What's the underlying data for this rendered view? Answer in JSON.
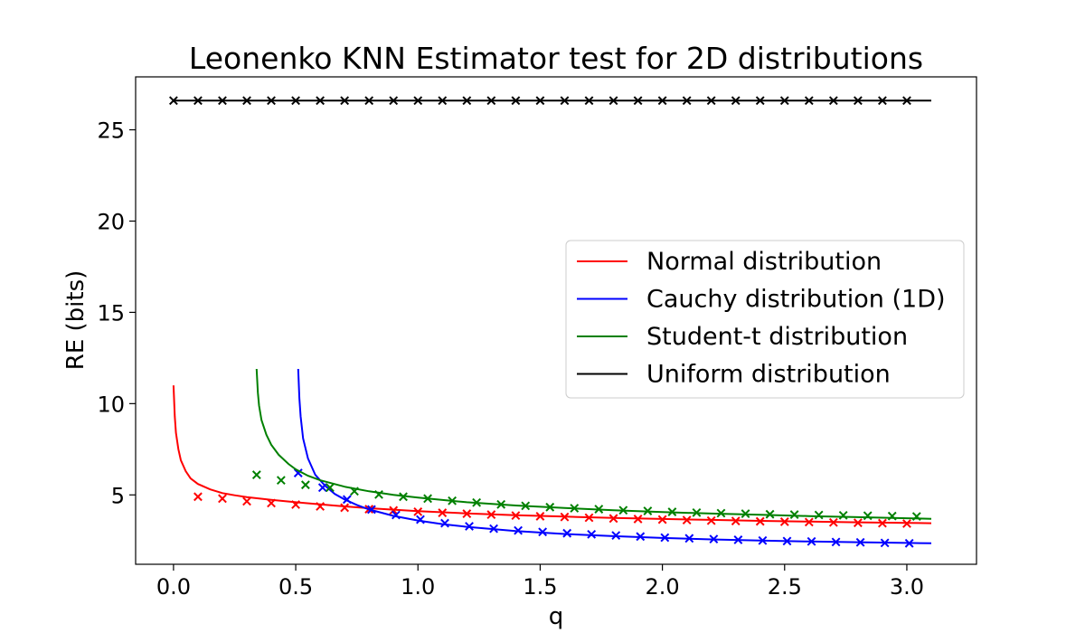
{
  "chart_data": {
    "type": "line",
    "title": "Leonenko KNN Estimator test for 2D distributions",
    "xlabel": "q",
    "ylabel": "RE (bits)",
    "xlim": [
      -0.155,
      3.285
    ],
    "ylim": [
      1.2,
      27.9
    ],
    "xticks": [
      "0.0",
      "0.5",
      "1.0",
      "1.5",
      "2.0",
      "2.5",
      "3.0"
    ],
    "xtick_values": [
      0.0,
      0.5,
      1.0,
      1.5,
      2.0,
      2.5,
      3.0
    ],
    "yticks": [
      "5",
      "10",
      "15",
      "20",
      "25"
    ],
    "ytick_values": [
      5,
      10,
      15,
      20,
      25
    ],
    "grid": false,
    "legend_position": "center-right",
    "series": [
      {
        "name": "Normal distribution",
        "color": "#ff0000",
        "line": {
          "x": [
            0.0,
            0.005,
            0.01,
            0.02,
            0.03,
            0.05,
            0.07,
            0.1,
            0.15,
            0.2,
            0.25,
            0.3,
            0.4,
            0.5,
            0.6,
            0.7,
            0.8,
            0.9,
            1.0,
            1.2,
            1.4,
            1.6,
            1.8,
            2.0,
            2.2,
            2.4,
            2.6,
            2.8,
            3.0,
            3.1
          ],
          "y": [
            11.0,
            9.3,
            8.4,
            7.5,
            6.9,
            6.3,
            5.9,
            5.6,
            5.3,
            5.1,
            4.98,
            4.88,
            4.73,
            4.6,
            4.48,
            4.37,
            4.27,
            4.19,
            4.11,
            3.99,
            3.89,
            3.81,
            3.74,
            3.68,
            3.63,
            3.58,
            3.54,
            3.5,
            3.47,
            3.45
          ]
        },
        "points": {
          "x": [
            0.1,
            0.2,
            0.3,
            0.4,
            0.5,
            0.6,
            0.7,
            0.8,
            0.9,
            1.0,
            1.1,
            1.2,
            1.3,
            1.4,
            1.5,
            1.6,
            1.7,
            1.8,
            1.9,
            2.0,
            2.1,
            2.2,
            2.3,
            2.4,
            2.5,
            2.6,
            2.7,
            2.8,
            2.9,
            3.0
          ],
          "y": [
            4.9,
            4.8,
            4.65,
            4.55,
            4.47,
            4.37,
            4.3,
            4.22,
            4.15,
            4.08,
            4.02,
            3.97,
            3.92,
            3.87,
            3.83,
            3.79,
            3.75,
            3.71,
            3.68,
            3.65,
            3.62,
            3.59,
            3.57,
            3.55,
            3.53,
            3.51,
            3.49,
            3.47,
            3.45,
            3.43
          ]
        }
      },
      {
        "name": "Cauchy distribution (1D)",
        "color": "#0000ff",
        "line": {
          "x": [
            0.51,
            0.515,
            0.52,
            0.53,
            0.55,
            0.58,
            0.62,
            0.66,
            0.7,
            0.75,
            0.8,
            0.9,
            1.0,
            1.1,
            1.2,
            1.4,
            1.6,
            1.8,
            2.0,
            2.2,
            2.4,
            2.6,
            2.8,
            3.0,
            3.1
          ],
          "y": [
            11.9,
            10.3,
            9.3,
            8.1,
            7.0,
            6.1,
            5.5,
            5.05,
            4.75,
            4.45,
            4.2,
            3.85,
            3.6,
            3.4,
            3.25,
            3.02,
            2.86,
            2.74,
            2.64,
            2.56,
            2.5,
            2.45,
            2.41,
            2.37,
            2.35
          ]
        },
        "points": {
          "x": [
            0.51,
            0.61,
            0.71,
            0.81,
            0.91,
            1.01,
            1.11,
            1.21,
            1.31,
            1.41,
            1.51,
            1.61,
            1.71,
            1.81,
            1.91,
            2.01,
            2.11,
            2.21,
            2.31,
            2.41,
            2.51,
            2.61,
            2.71,
            2.81,
            2.91,
            3.01
          ],
          "y": [
            6.2,
            5.4,
            4.75,
            4.2,
            3.9,
            3.65,
            3.45,
            3.28,
            3.15,
            3.05,
            2.97,
            2.9,
            2.84,
            2.78,
            2.72,
            2.66,
            2.62,
            2.58,
            2.54,
            2.5,
            2.47,
            2.45,
            2.42,
            2.4,
            2.37,
            2.35
          ]
        }
      },
      {
        "name": "Student-t distribution",
        "color": "#008000",
        "line": {
          "x": [
            0.34,
            0.345,
            0.35,
            0.36,
            0.38,
            0.4,
            0.43,
            0.47,
            0.5,
            0.55,
            0.6,
            0.7,
            0.8,
            0.9,
            1.0,
            1.2,
            1.4,
            1.6,
            1.8,
            2.0,
            2.2,
            2.4,
            2.6,
            2.8,
            3.0,
            3.1
          ],
          "y": [
            11.9,
            10.6,
            9.9,
            9.1,
            8.3,
            7.75,
            7.2,
            6.7,
            6.4,
            6.05,
            5.8,
            5.45,
            5.2,
            5.0,
            4.85,
            4.6,
            4.42,
            4.28,
            4.16,
            4.06,
            3.98,
            3.91,
            3.84,
            3.78,
            3.72,
            3.69
          ]
        },
        "points": {
          "x": [
            0.34,
            0.44,
            0.54,
            0.64,
            0.74,
            0.84,
            0.94,
            1.04,
            1.14,
            1.24,
            1.34,
            1.44,
            1.54,
            1.64,
            1.74,
            1.84,
            1.94,
            2.04,
            2.14,
            2.24,
            2.34,
            2.44,
            2.54,
            2.64,
            2.74,
            2.84,
            2.94,
            3.04
          ],
          "y": [
            6.1,
            5.8,
            5.55,
            5.4,
            5.2,
            5.02,
            4.9,
            4.8,
            4.68,
            4.58,
            4.48,
            4.4,
            4.33,
            4.27,
            4.22,
            4.16,
            4.12,
            4.07,
            4.03,
            4.0,
            3.97,
            3.94,
            3.92,
            3.9,
            3.88,
            3.86,
            3.84,
            3.82
          ]
        }
      },
      {
        "name": "Uniform distribution",
        "color": "#000000",
        "line": {
          "x": [
            0.0,
            3.1
          ],
          "y": [
            26.6,
            26.6
          ]
        },
        "points": {
          "x": [
            0.0,
            0.1,
            0.2,
            0.3,
            0.4,
            0.5,
            0.6,
            0.7,
            0.8,
            0.9,
            1.0,
            1.1,
            1.2,
            1.3,
            1.4,
            1.5,
            1.6,
            1.7,
            1.8,
            1.9,
            2.0,
            2.1,
            2.2,
            2.3,
            2.4,
            2.5,
            2.6,
            2.7,
            2.8,
            2.9,
            3.0
          ],
          "y": [
            26.6,
            26.6,
            26.6,
            26.6,
            26.6,
            26.6,
            26.6,
            26.6,
            26.6,
            26.6,
            26.6,
            26.6,
            26.6,
            26.6,
            26.6,
            26.6,
            26.6,
            26.6,
            26.6,
            26.6,
            26.6,
            26.6,
            26.6,
            26.6,
            26.6,
            26.6,
            26.6,
            26.6,
            26.6,
            26.6,
            26.6
          ]
        }
      }
    ]
  }
}
